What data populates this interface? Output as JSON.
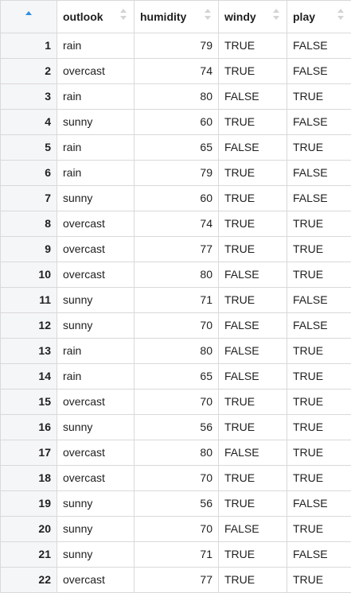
{
  "columns": [
    {
      "key": "index",
      "label": ""
    },
    {
      "key": "outlook",
      "label": "outlook"
    },
    {
      "key": "humidity",
      "label": "humidity"
    },
    {
      "key": "windy",
      "label": "windy"
    },
    {
      "key": "play",
      "label": "play"
    }
  ],
  "sort": {
    "column": "index",
    "direction": "ascending",
    "active_color": "#2f8ee0"
  },
  "rows": [
    {
      "index": "1",
      "outlook": "rain",
      "humidity": "79",
      "windy": "TRUE",
      "play": "FALSE"
    },
    {
      "index": "2",
      "outlook": "overcast",
      "humidity": "74",
      "windy": "TRUE",
      "play": "FALSE"
    },
    {
      "index": "3",
      "outlook": "rain",
      "humidity": "80",
      "windy": "FALSE",
      "play": "TRUE"
    },
    {
      "index": "4",
      "outlook": "sunny",
      "humidity": "60",
      "windy": "TRUE",
      "play": "FALSE"
    },
    {
      "index": "5",
      "outlook": "rain",
      "humidity": "65",
      "windy": "FALSE",
      "play": "TRUE"
    },
    {
      "index": "6",
      "outlook": "rain",
      "humidity": "79",
      "windy": "TRUE",
      "play": "FALSE"
    },
    {
      "index": "7",
      "outlook": "sunny",
      "humidity": "60",
      "windy": "TRUE",
      "play": "FALSE"
    },
    {
      "index": "8",
      "outlook": "overcast",
      "humidity": "74",
      "windy": "TRUE",
      "play": "TRUE"
    },
    {
      "index": "9",
      "outlook": "overcast",
      "humidity": "77",
      "windy": "TRUE",
      "play": "TRUE"
    },
    {
      "index": "10",
      "outlook": "overcast",
      "humidity": "80",
      "windy": "FALSE",
      "play": "TRUE"
    },
    {
      "index": "11",
      "outlook": "sunny",
      "humidity": "71",
      "windy": "TRUE",
      "play": "FALSE"
    },
    {
      "index": "12",
      "outlook": "sunny",
      "humidity": "70",
      "windy": "FALSE",
      "play": "FALSE"
    },
    {
      "index": "13",
      "outlook": "rain",
      "humidity": "80",
      "windy": "FALSE",
      "play": "TRUE"
    },
    {
      "index": "14",
      "outlook": "rain",
      "humidity": "65",
      "windy": "FALSE",
      "play": "TRUE"
    },
    {
      "index": "15",
      "outlook": "overcast",
      "humidity": "70",
      "windy": "TRUE",
      "play": "TRUE"
    },
    {
      "index": "16",
      "outlook": "sunny",
      "humidity": "56",
      "windy": "TRUE",
      "play": "TRUE"
    },
    {
      "index": "17",
      "outlook": "overcast",
      "humidity": "80",
      "windy": "FALSE",
      "play": "TRUE"
    },
    {
      "index": "18",
      "outlook": "overcast",
      "humidity": "70",
      "windy": "TRUE",
      "play": "TRUE"
    },
    {
      "index": "19",
      "outlook": "sunny",
      "humidity": "56",
      "windy": "TRUE",
      "play": "FALSE"
    },
    {
      "index": "20",
      "outlook": "sunny",
      "humidity": "70",
      "windy": "FALSE",
      "play": "TRUE"
    },
    {
      "index": "21",
      "outlook": "sunny",
      "humidity": "71",
      "windy": "TRUE",
      "play": "FALSE"
    },
    {
      "index": "22",
      "outlook": "overcast",
      "humidity": "77",
      "windy": "TRUE",
      "play": "TRUE"
    }
  ]
}
